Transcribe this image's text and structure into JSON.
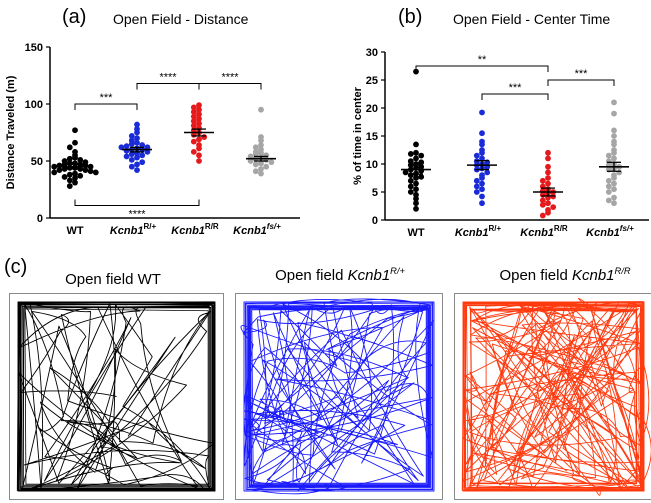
{
  "panels": {
    "a": {
      "letter": "(a)",
      "title": "Open Field - Distance"
    },
    "b": {
      "letter": "(b)",
      "title": "Open  Field - Center Time"
    },
    "c": {
      "letter": "(c)",
      "tracks": [
        {
          "title_plain": "Open field WT",
          "title_prefix": "Open field ",
          "title_gene": "",
          "title_sup": "",
          "color": "#000000"
        },
        {
          "title_plain": "",
          "title_prefix": "Open field ",
          "title_gene": "Kcnb1",
          "title_sup": "R/+",
          "color": "#1a1aff"
        },
        {
          "title_plain": "",
          "title_prefix": "Open field ",
          "title_gene": "Kcnb1",
          "title_sup": "R/R",
          "color": "#ff3a0f"
        }
      ]
    }
  },
  "group_labels": [
    {
      "main": "WT",
      "sup": ""
    },
    {
      "main": "Kcnb1",
      "sup": "R/+"
    },
    {
      "main": "Kcnb1",
      "sup": "R/R"
    },
    {
      "main": "Kcnb1",
      "sup": "fs/+"
    }
  ],
  "group_colors": [
    "#000000",
    "#1a2bd8",
    "#e41a1c",
    "#a6a6a6"
  ],
  "chart_data": [
    {
      "type": "scatter",
      "title": "Open Field - Distance",
      "ylabel": "Distance Traveled (m)",
      "ylim": [
        0,
        150
      ],
      "yticks": [
        0,
        50,
        100,
        150
      ],
      "categories": [
        "WT",
        "Kcnb1R/+",
        "Kcnb1R/R",
        "Kcnb1fs/+"
      ],
      "series": [
        {
          "name": "WT",
          "mean": 45,
          "sem": 2,
          "values": [
            77,
            66,
            62,
            58,
            55,
            53,
            52,
            51,
            50,
            49,
            48,
            48,
            47,
            47,
            46,
            46,
            45,
            45,
            44,
            44,
            43,
            43,
            42,
            42,
            41,
            40,
            40,
            39,
            38,
            37,
            36,
            35,
            33,
            31,
            28
          ]
        },
        {
          "name": "Kcnb1R/+",
          "mean": 60,
          "sem": 2,
          "values": [
            82,
            78,
            75,
            72,
            70,
            68,
            66,
            65,
            64,
            63,
            62,
            62,
            61,
            60,
            60,
            59,
            58,
            57,
            56,
            55,
            54,
            53,
            51,
            49,
            47,
            45,
            42
          ]
        },
        {
          "name": "Kcnb1R/R",
          "mean": 75,
          "sem": 3,
          "values": [
            99,
            97,
            95,
            93,
            91,
            89,
            87,
            85,
            83,
            81,
            79,
            77,
            75,
            73,
            71,
            69,
            67,
            64,
            61,
            58,
            55,
            50
          ]
        },
        {
          "name": "Kcnb1fs/+",
          "mean": 52,
          "sem": 2,
          "values": [
            95,
            71,
            68,
            64,
            62,
            60,
            58,
            57,
            56,
            55,
            54,
            53,
            52,
            51,
            50,
            49,
            48,
            47,
            45,
            43,
            41,
            39
          ]
        }
      ],
      "significance": [
        {
          "from": 0,
          "to": 1,
          "label": "***",
          "y": 100,
          "side": "top"
        },
        {
          "from": 1,
          "to": 2,
          "label": "****",
          "y": 118,
          "side": "top"
        },
        {
          "from": 2,
          "to": 3,
          "label": "****",
          "y": 118,
          "side": "top"
        },
        {
          "from": 0,
          "to": 2,
          "label": "****",
          "y": 11,
          "side": "bottom"
        }
      ]
    },
    {
      "type": "scatter",
      "title": "Open  Field - Center Time",
      "ylabel": "% of time in center",
      "ylim": [
        0,
        30
      ],
      "yticks": [
        0,
        5,
        10,
        15,
        20,
        25,
        30
      ],
      "categories": [
        "WT",
        "Kcnb1R/+",
        "Kcnb1R/R",
        "Kcnb1fs/+"
      ],
      "series": [
        {
          "name": "WT",
          "mean": 9,
          "sem": 0.8,
          "values": [
            26.5,
            13.5,
            12,
            11.8,
            11.5,
            11,
            10.5,
            10.3,
            10,
            9.8,
            9.5,
            9.3,
            9,
            8.8,
            8.5,
            8.3,
            8,
            7.7,
            7.5,
            7,
            6.5,
            6,
            5.5,
            5,
            4.5,
            3.8,
            3,
            2
          ]
        },
        {
          "name": "Kcnb1R/+",
          "mean": 9.8,
          "sem": 0.8,
          "values": [
            19.2,
            15.5,
            14,
            13.5,
            12.5,
            12,
            11.5,
            11,
            10.5,
            10.3,
            10,
            9.8,
            9.5,
            9.2,
            9,
            8.5,
            8,
            7.5,
            7,
            6.5,
            6,
            5.5,
            5,
            4.2,
            3
          ]
        },
        {
          "name": "Kcnb1R/R",
          "mean": 5,
          "sem": 0.7,
          "values": [
            12,
            11,
            9.5,
            8.5,
            7.5,
            7,
            6.5,
            6,
            5.5,
            5.2,
            5,
            4.8,
            4.5,
            4.2,
            4,
            3.5,
            3,
            2.7,
            2.3,
            1.8,
            1.3,
            0.8
          ]
        },
        {
          "name": "Kcnb1fs/+",
          "mean": 9.5,
          "sem": 0.8,
          "values": [
            21,
            19,
            16,
            15,
            14,
            13.5,
            12.5,
            12,
            11.5,
            11,
            10.5,
            10,
            9.8,
            9.5,
            9.2,
            9,
            8.5,
            8,
            7.5,
            7,
            6.5,
            6,
            5.5,
            5,
            4,
            3.5,
            3
          ]
        }
      ],
      "significance": [
        {
          "from": 0,
          "to": 2,
          "label": "**",
          "y": 27.5,
          "side": "top"
        },
        {
          "from": 1,
          "to": 2,
          "label": "***",
          "y": 22.5,
          "side": "top"
        },
        {
          "from": 2,
          "to": 3,
          "label": "***",
          "y": 25,
          "side": "top"
        }
      ]
    }
  ]
}
